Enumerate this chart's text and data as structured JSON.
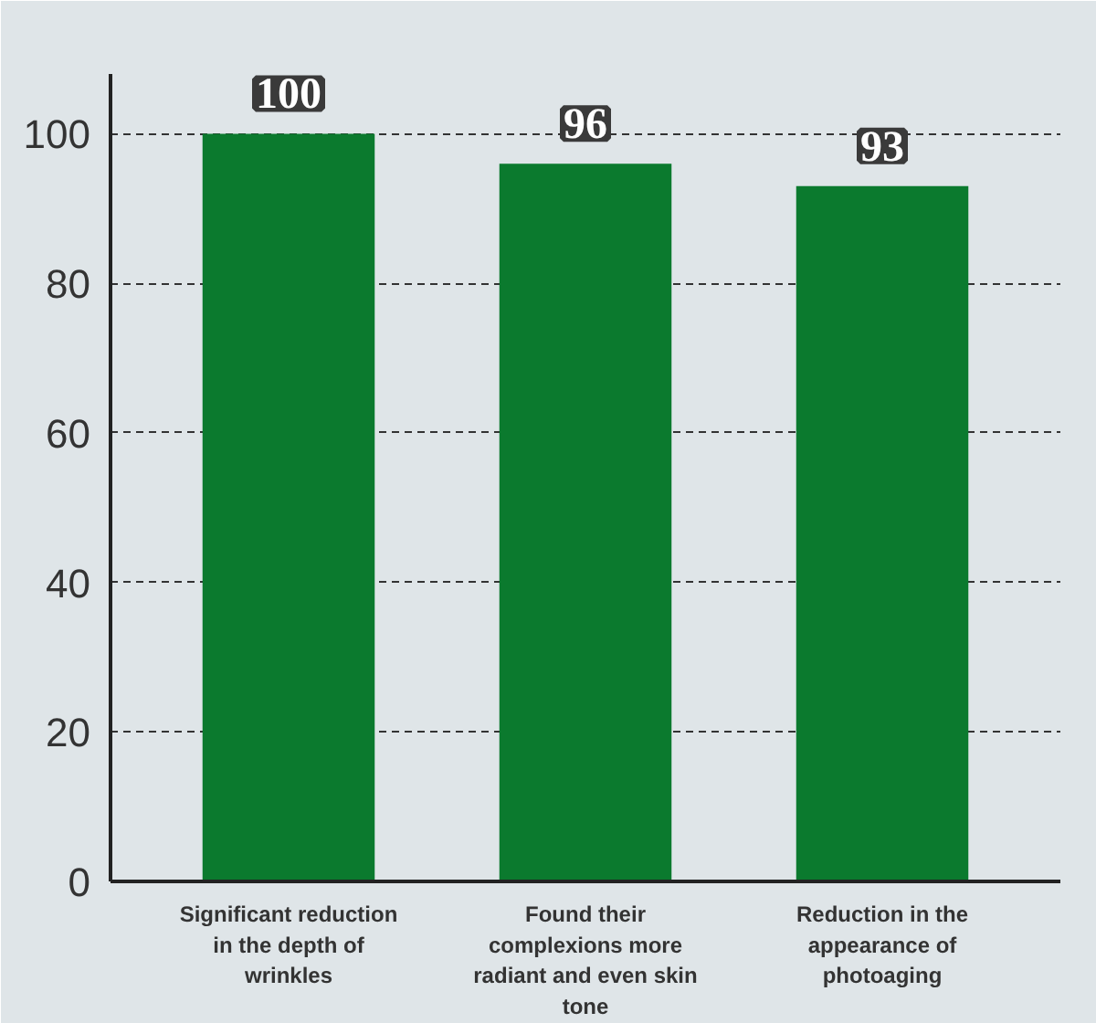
{
  "chart_data": {
    "type": "bar",
    "categories": [
      "Significant reduction in the depth of wrinkles",
      "Found their complexions more radiant and even skin tone",
      "Reduction in the appearance of photoaging"
    ],
    "values": [
      100,
      96,
      93
    ],
    "color": "#0b7a2e",
    "ylim": [
      0,
      108
    ],
    "yticks": [
      0,
      20,
      40,
      60,
      80,
      100
    ],
    "grid": "y",
    "data_labels": true
  }
}
